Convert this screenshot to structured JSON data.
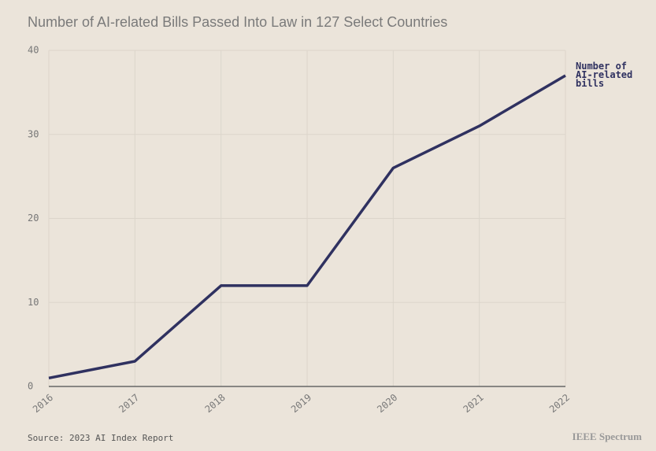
{
  "chart_data": {
    "type": "line",
    "title": "Number of AI-related Bills Passed Into Law in 127 Select Countries",
    "categories": [
      "2016",
      "2017",
      "2018",
      "2019",
      "2020",
      "2021",
      "2022"
    ],
    "series": [
      {
        "name": "Number of AI-related bills",
        "color": "#2f3160",
        "values": [
          1,
          3,
          12,
          12,
          26,
          31,
          37
        ]
      }
    ],
    "ylim": [
      0,
      40
    ],
    "yticks": [
      0,
      10,
      20,
      30,
      40
    ],
    "grid": true,
    "source": "Source: 2023 AI Index Report",
    "brand": "IEEE Spectrum"
  }
}
